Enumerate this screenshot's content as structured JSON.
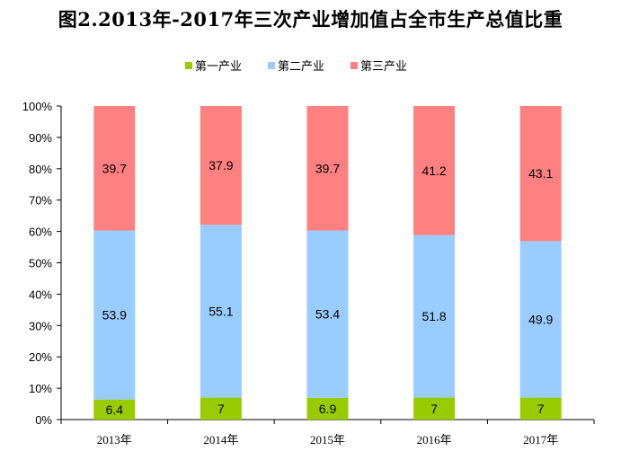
{
  "chart_data": {
    "type": "bar",
    "stacked": true,
    "title": "图2.2013年-2017年三次产业增加值占全市生产总值比重",
    "categories": [
      "2013年",
      "2014年",
      "2015年",
      "2016年",
      "2017年"
    ],
    "series": [
      {
        "name": "第一产业",
        "values": [
          6.4,
          7,
          6.9,
          7,
          7
        ],
        "color": "#99CC00"
      },
      {
        "name": "第二产业",
        "values": [
          53.9,
          55.1,
          53.4,
          51.8,
          49.9
        ],
        "color": "#99CCFF"
      },
      {
        "name": "第三产业",
        "values": [
          39.7,
          37.9,
          39.7,
          41.2,
          43.1
        ],
        "color": "#FF8080"
      }
    ],
    "data_labels": [
      [
        "6.4",
        "7",
        "6.9",
        "7",
        "7"
      ],
      [
        "53.9",
        "55.1",
        "53.4",
        "51.8",
        "49.9"
      ],
      [
        "39.7",
        "37.9",
        "39.7",
        "41.2",
        "43.1"
      ]
    ],
    "yticks": [
      "0%",
      "10%",
      "20%",
      "30%",
      "40%",
      "50%",
      "60%",
      "70%",
      "80%",
      "90%",
      "100%"
    ],
    "ylim": [
      0,
      100
    ],
    "grid": false,
    "legend_position": "top"
  }
}
